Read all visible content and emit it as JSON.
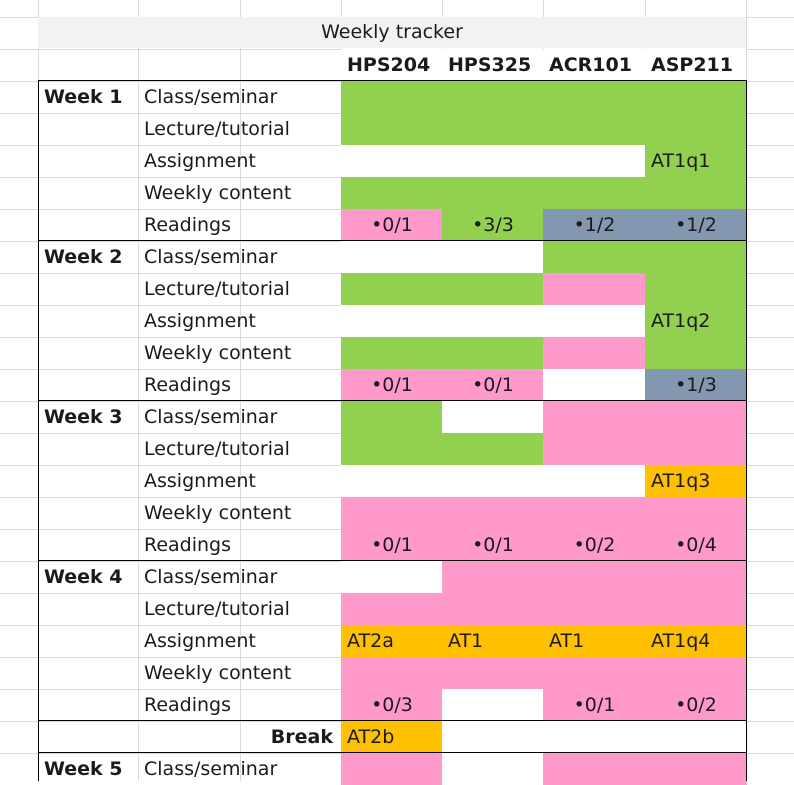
{
  "title": "Weekly tracker",
  "courses": [
    "HPS204",
    "HPS325",
    "ACR101",
    "ASP211"
  ],
  "colors": {
    "green": "#92d050",
    "pink": "#ff99cc",
    "slate": "#8497b0",
    "orange": "#ffc000",
    "white": "#ffffff",
    "header_band": "#f2f2f2"
  },
  "rows": [
    {
      "week": "Week 1",
      "item": "Class/seminar",
      "cells": [
        {
          "f": "green",
          "t": ""
        },
        {
          "f": "green",
          "t": ""
        },
        {
          "f": "green",
          "t": ""
        },
        {
          "f": "green",
          "t": ""
        }
      ]
    },
    {
      "week": "",
      "item": "Lecture/tutorial",
      "cells": [
        {
          "f": "green",
          "t": ""
        },
        {
          "f": "green",
          "t": ""
        },
        {
          "f": "green",
          "t": ""
        },
        {
          "f": "green",
          "t": ""
        }
      ]
    },
    {
      "week": "",
      "item": "Assignment",
      "cells": [
        {
          "f": "white",
          "t": ""
        },
        {
          "f": "white",
          "t": ""
        },
        {
          "f": "white",
          "t": ""
        },
        {
          "f": "green",
          "t": "AT1q1",
          "a": "left"
        }
      ]
    },
    {
      "week": "",
      "item": "Weekly content",
      "cells": [
        {
          "f": "green",
          "t": ""
        },
        {
          "f": "green",
          "t": ""
        },
        {
          "f": "green",
          "t": ""
        },
        {
          "f": "green",
          "t": ""
        }
      ]
    },
    {
      "week": "",
      "item": "Readings",
      "cells": [
        {
          "f": "pink",
          "t": "•0/1"
        },
        {
          "f": "green",
          "t": "•3/3"
        },
        {
          "f": "slate",
          "t": "•1/2"
        },
        {
          "f": "slate",
          "t": "•1/2"
        }
      ]
    },
    {
      "week": "Week 2",
      "item": "Class/seminar",
      "cells": [
        {
          "f": "white",
          "t": ""
        },
        {
          "f": "white",
          "t": ""
        },
        {
          "f": "green",
          "t": ""
        },
        {
          "f": "green",
          "t": ""
        }
      ]
    },
    {
      "week": "",
      "item": "Lecture/tutorial",
      "cells": [
        {
          "f": "green",
          "t": ""
        },
        {
          "f": "green",
          "t": ""
        },
        {
          "f": "pink",
          "t": ""
        },
        {
          "f": "green",
          "t": ""
        }
      ]
    },
    {
      "week": "",
      "item": "Assignment",
      "cells": [
        {
          "f": "white",
          "t": ""
        },
        {
          "f": "white",
          "t": ""
        },
        {
          "f": "white",
          "t": ""
        },
        {
          "f": "green",
          "t": "AT1q2",
          "a": "left"
        }
      ]
    },
    {
      "week": "",
      "item": "Weekly content",
      "cells": [
        {
          "f": "green",
          "t": ""
        },
        {
          "f": "green",
          "t": ""
        },
        {
          "f": "pink",
          "t": ""
        },
        {
          "f": "green",
          "t": ""
        }
      ]
    },
    {
      "week": "",
      "item": "Readings",
      "cells": [
        {
          "f": "pink",
          "t": "•0/1"
        },
        {
          "f": "pink",
          "t": "•0/1"
        },
        {
          "f": "white",
          "t": ""
        },
        {
          "f": "slate",
          "t": "•1/3"
        }
      ]
    },
    {
      "week": "Week 3",
      "item": "Class/seminar",
      "cells": [
        {
          "f": "green",
          "t": ""
        },
        {
          "f": "white",
          "t": ""
        },
        {
          "f": "pink",
          "t": ""
        },
        {
          "f": "pink",
          "t": ""
        }
      ]
    },
    {
      "week": "",
      "item": "Lecture/tutorial",
      "cells": [
        {
          "f": "green",
          "t": ""
        },
        {
          "f": "green",
          "t": ""
        },
        {
          "f": "pink",
          "t": ""
        },
        {
          "f": "pink",
          "t": ""
        }
      ]
    },
    {
      "week": "",
      "item": "Assignment",
      "cells": [
        {
          "f": "white",
          "t": ""
        },
        {
          "f": "white",
          "t": ""
        },
        {
          "f": "white",
          "t": ""
        },
        {
          "f": "orange",
          "t": "AT1q3",
          "a": "left"
        }
      ]
    },
    {
      "week": "",
      "item": "Weekly content",
      "cells": [
        {
          "f": "pink",
          "t": ""
        },
        {
          "f": "pink",
          "t": ""
        },
        {
          "f": "pink",
          "t": ""
        },
        {
          "f": "pink",
          "t": ""
        }
      ]
    },
    {
      "week": "",
      "item": "Readings",
      "cells": [
        {
          "f": "pink",
          "t": "•0/1"
        },
        {
          "f": "pink",
          "t": "•0/1"
        },
        {
          "f": "pink",
          "t": "•0/2"
        },
        {
          "f": "pink",
          "t": "•0/4"
        }
      ]
    },
    {
      "week": "Week 4",
      "item": "Class/seminar",
      "cells": [
        {
          "f": "white",
          "t": ""
        },
        {
          "f": "pink",
          "t": ""
        },
        {
          "f": "pink",
          "t": ""
        },
        {
          "f": "pink",
          "t": ""
        }
      ]
    },
    {
      "week": "",
      "item": "Lecture/tutorial",
      "cells": [
        {
          "f": "pink",
          "t": ""
        },
        {
          "f": "pink",
          "t": ""
        },
        {
          "f": "pink",
          "t": ""
        },
        {
          "f": "pink",
          "t": ""
        }
      ]
    },
    {
      "week": "",
      "item": "Assignment",
      "cells": [
        {
          "f": "orange",
          "t": "AT2a",
          "a": "left"
        },
        {
          "f": "orange",
          "t": "AT1",
          "a": "left"
        },
        {
          "f": "orange",
          "t": "AT1",
          "a": "left"
        },
        {
          "f": "orange",
          "t": "AT1q4",
          "a": "left"
        }
      ]
    },
    {
      "week": "",
      "item": "Weekly content",
      "cells": [
        {
          "f": "pink",
          "t": ""
        },
        {
          "f": "pink",
          "t": ""
        },
        {
          "f": "pink",
          "t": ""
        },
        {
          "f": "pink",
          "t": ""
        }
      ]
    },
    {
      "week": "",
      "item": "Readings",
      "cells": [
        {
          "f": "pink",
          "t": "•0/3"
        },
        {
          "f": "white",
          "t": ""
        },
        {
          "f": "pink",
          "t": "•0/1"
        },
        {
          "f": "pink",
          "t": "•0/2"
        }
      ]
    },
    {
      "week": "Break",
      "item": "",
      "cells": [
        {
          "f": "orange",
          "t": "AT2b",
          "a": "left"
        },
        {
          "f": "white",
          "t": ""
        },
        {
          "f": "white",
          "t": ""
        },
        {
          "f": "white",
          "t": ""
        }
      ]
    },
    {
      "week": "Week 5",
      "item": "Class/seminar",
      "cells": [
        {
          "f": "pink",
          "t": ""
        },
        {
          "f": "white",
          "t": ""
        },
        {
          "f": "pink",
          "t": ""
        },
        {
          "f": "pink",
          "t": ""
        }
      ]
    }
  ]
}
